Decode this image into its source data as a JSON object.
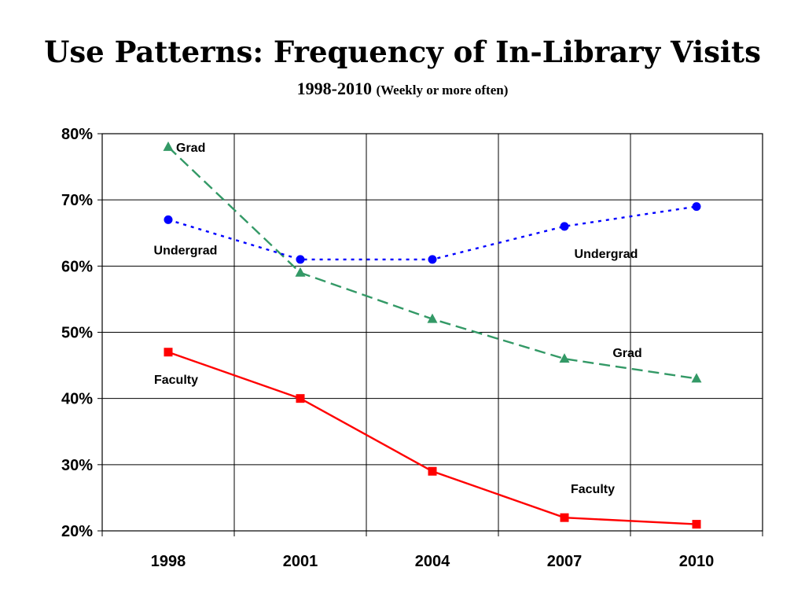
{
  "header": {
    "title": "Use Patterns: Frequency of In-Library Visits",
    "subtitle_years": "1998-2010",
    "subtitle_note": "(Weekly or more often)"
  },
  "chart_data": {
    "type": "line",
    "title": "Use Patterns: Frequency of In-Library Visits",
    "subtitle": "1998-2010 (Weekly or more often)",
    "xlabel": "",
    "ylabel": "",
    "categories": [
      "1998",
      "2001",
      "2004",
      "2007",
      "2010"
    ],
    "ylim": [
      20,
      80
    ],
    "yticks": [
      20,
      30,
      40,
      50,
      60,
      70,
      80
    ],
    "ytick_labels": [
      "20%",
      "30%",
      "40%",
      "50%",
      "60%",
      "70%",
      "80%"
    ],
    "grid": true,
    "legend": "none (direct annotations)",
    "series": [
      {
        "name": "Grad",
        "color": "#339966",
        "line_style": "dashed",
        "marker": "triangle",
        "values": [
          78,
          59,
          52,
          46,
          43
        ]
      },
      {
        "name": "Undergrad",
        "color": "#0000ff",
        "line_style": "dotted",
        "marker": "circle",
        "values": [
          67,
          61,
          61,
          66,
          69
        ]
      },
      {
        "name": "Faculty",
        "color": "#ff0000",
        "line_style": "solid",
        "marker": "square",
        "values": [
          47,
          40,
          29,
          22,
          21
        ]
      }
    ],
    "annotations": [
      {
        "text": "Grad",
        "series": "Grad",
        "near": "1998 point"
      },
      {
        "text": "Undergrad",
        "series": "Undergrad",
        "near": "1998 point"
      },
      {
        "text": "Faculty",
        "series": "Faculty",
        "near": "1998 point"
      },
      {
        "text": "Undergrad",
        "series": "Undergrad",
        "near": "2007 point"
      },
      {
        "text": "Grad",
        "series": "Grad",
        "near": "2007-2010 segment"
      },
      {
        "text": "Faculty",
        "series": "Faculty",
        "near": "2007 point"
      }
    ]
  }
}
